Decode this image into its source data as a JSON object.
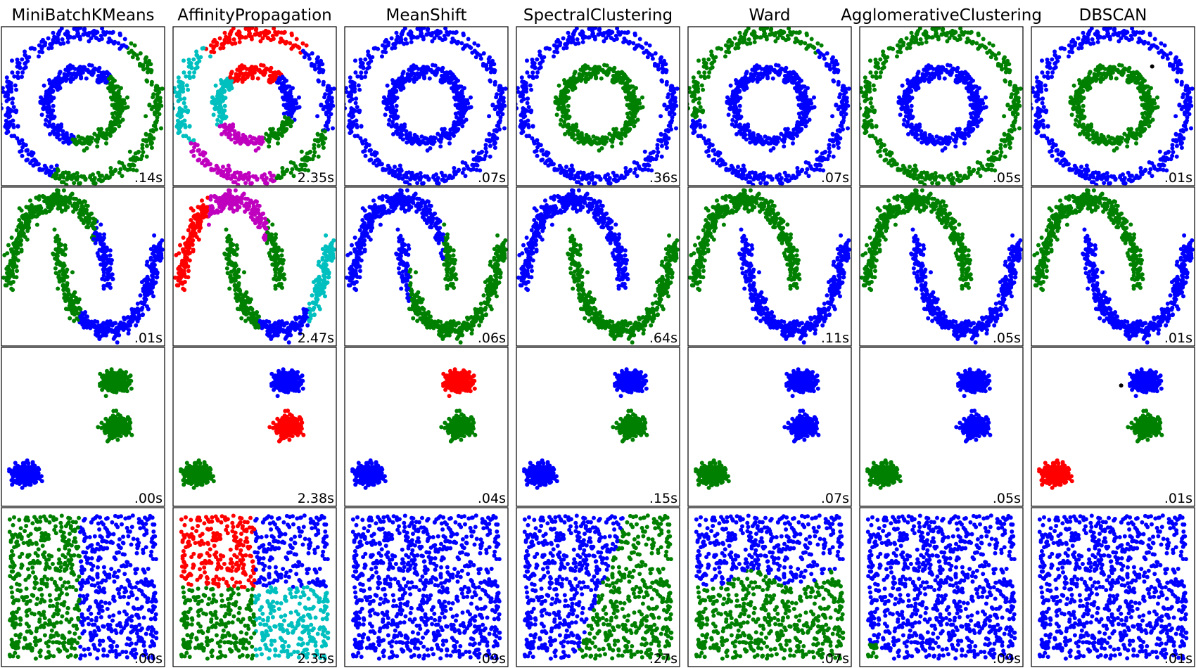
{
  "chart_data": {
    "type": "scatter",
    "grid": false,
    "methods": [
      "MiniBatchKMeans",
      "AffinityPropagation",
      "MeanShift",
      "SpectralClustering",
      "Ward",
      "AgglomerativeClustering",
      "DBSCAN"
    ],
    "rows": 4,
    "times": [
      [
        ".14s",
        "2.35s",
        ".07s",
        ".36s",
        ".07s",
        ".05s",
        ".01s"
      ],
      [
        ".01s",
        "2.47s",
        ".06s",
        ".64s",
        ".11s",
        ".05s",
        ".01s"
      ],
      [
        ".00s",
        "2.38s",
        ".04s",
        ".15s",
        ".07s",
        ".05s",
        ".01s"
      ],
      [
        ".00s",
        "2.35s",
        ".09s",
        ".27s",
        ".07s",
        ".09s",
        ".01s"
      ]
    ],
    "cluster_colors": [
      "#0000ff",
      "#008000",
      "#ff0000",
      "#00bfbf",
      "#bf00bf",
      "#000000"
    ]
  }
}
